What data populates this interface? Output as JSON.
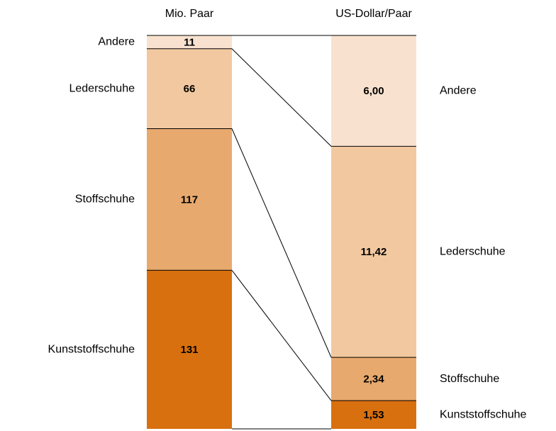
{
  "chart_data": [
    {
      "type": "bar",
      "title": "Mio. Paar",
      "categories": [
        "Kunststoffschuhe",
        "Stoffschuhe",
        "Lederschuhe",
        "Andere"
      ],
      "values": [
        131,
        117,
        66,
        11
      ],
      "colors": [
        "#d8700f",
        "#e8a96e",
        "#f2c8a0",
        "#f8e2cf"
      ]
    },
    {
      "type": "bar",
      "title": "US-Dollar/Paar",
      "categories": [
        "Kunststoffschuhe",
        "Stoffschuhe",
        "Lederschuhe",
        "Andere"
      ],
      "values": [
        1.53,
        2.34,
        11.42,
        6.0
      ],
      "value_labels": [
        "1,53",
        "2,34",
        "11,42",
        "6,00"
      ],
      "colors": [
        "#d8700f",
        "#e8a96e",
        "#f2c8a0",
        "#f8e2cf"
      ]
    }
  ]
}
